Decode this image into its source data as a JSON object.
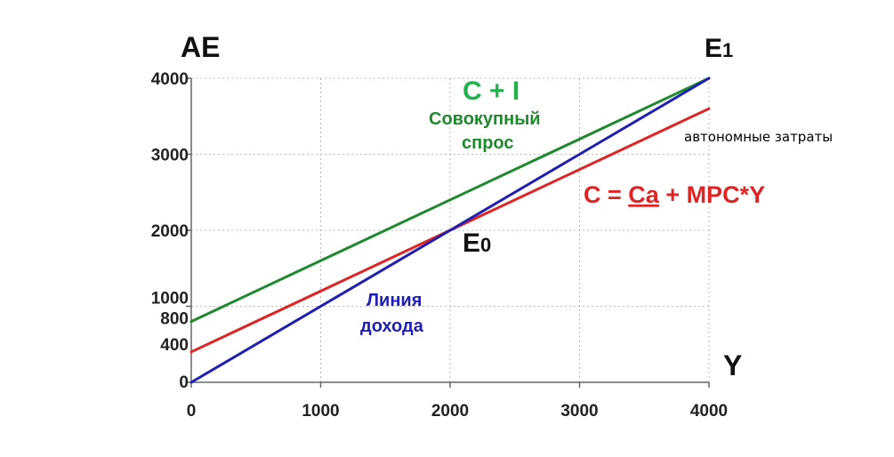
{
  "chart_data": {
    "type": "line",
    "xlabel": "Y",
    "ylabel": "AE",
    "xlim": [
      0,
      4000
    ],
    "ylim": [
      0,
      4000
    ],
    "x_ticks": [
      "0",
      "1000",
      "2000",
      "3000",
      "4000"
    ],
    "y_ticks": [
      "0",
      "400",
      "800",
      "1000",
      "2000",
      "3000",
      "4000"
    ],
    "grid": true,
    "series": [
      {
        "name": "C + I",
        "color": "#1e8a2e",
        "x": [
          0,
          4000
        ],
        "y": [
          800,
          4000
        ]
      },
      {
        "name": "C = Ca + MPC*Y",
        "color": "#e02424",
        "x": [
          0,
          4000
        ],
        "y": [
          400,
          3600
        ]
      },
      {
        "name": "Линия дохода",
        "color": "#1f1fb4",
        "x": [
          0,
          4000
        ],
        "y": [
          0,
          4000
        ]
      }
    ],
    "annotations": {
      "ci_title": "C + I",
      "ci_sub1": "Совокупный",
      "ci_sub2": "спрос",
      "c_eq_prefix": "C = ",
      "c_eq_ca": "Ca",
      "c_eq_suffix": " + MPC*Y",
      "income_line1": "Линия",
      "income_line2": "дохода",
      "e0_main": "E",
      "e0_sub": "0",
      "e1_main": "E",
      "e1_sub": "1",
      "note": "автономные затраты"
    },
    "points": {
      "E0": {
        "x": 2000,
        "y": 2000
      },
      "E1": {
        "x": 4000,
        "y": 4000
      }
    }
  }
}
